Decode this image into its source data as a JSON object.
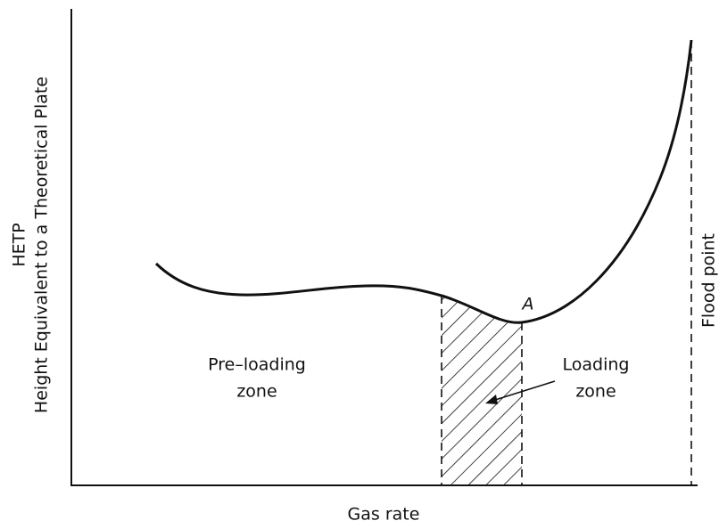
{
  "axes": {
    "y_label": [
      "HETP",
      "Height Equivalent to a Theoretical Plate"
    ],
    "x_label": "Gas rate"
  },
  "annotations": {
    "flood_point": "Flood point",
    "point_a": "A",
    "pre_loading": [
      "Pre–loading",
      "zone"
    ],
    "loading": [
      "Loading",
      "zone"
    ]
  }
}
